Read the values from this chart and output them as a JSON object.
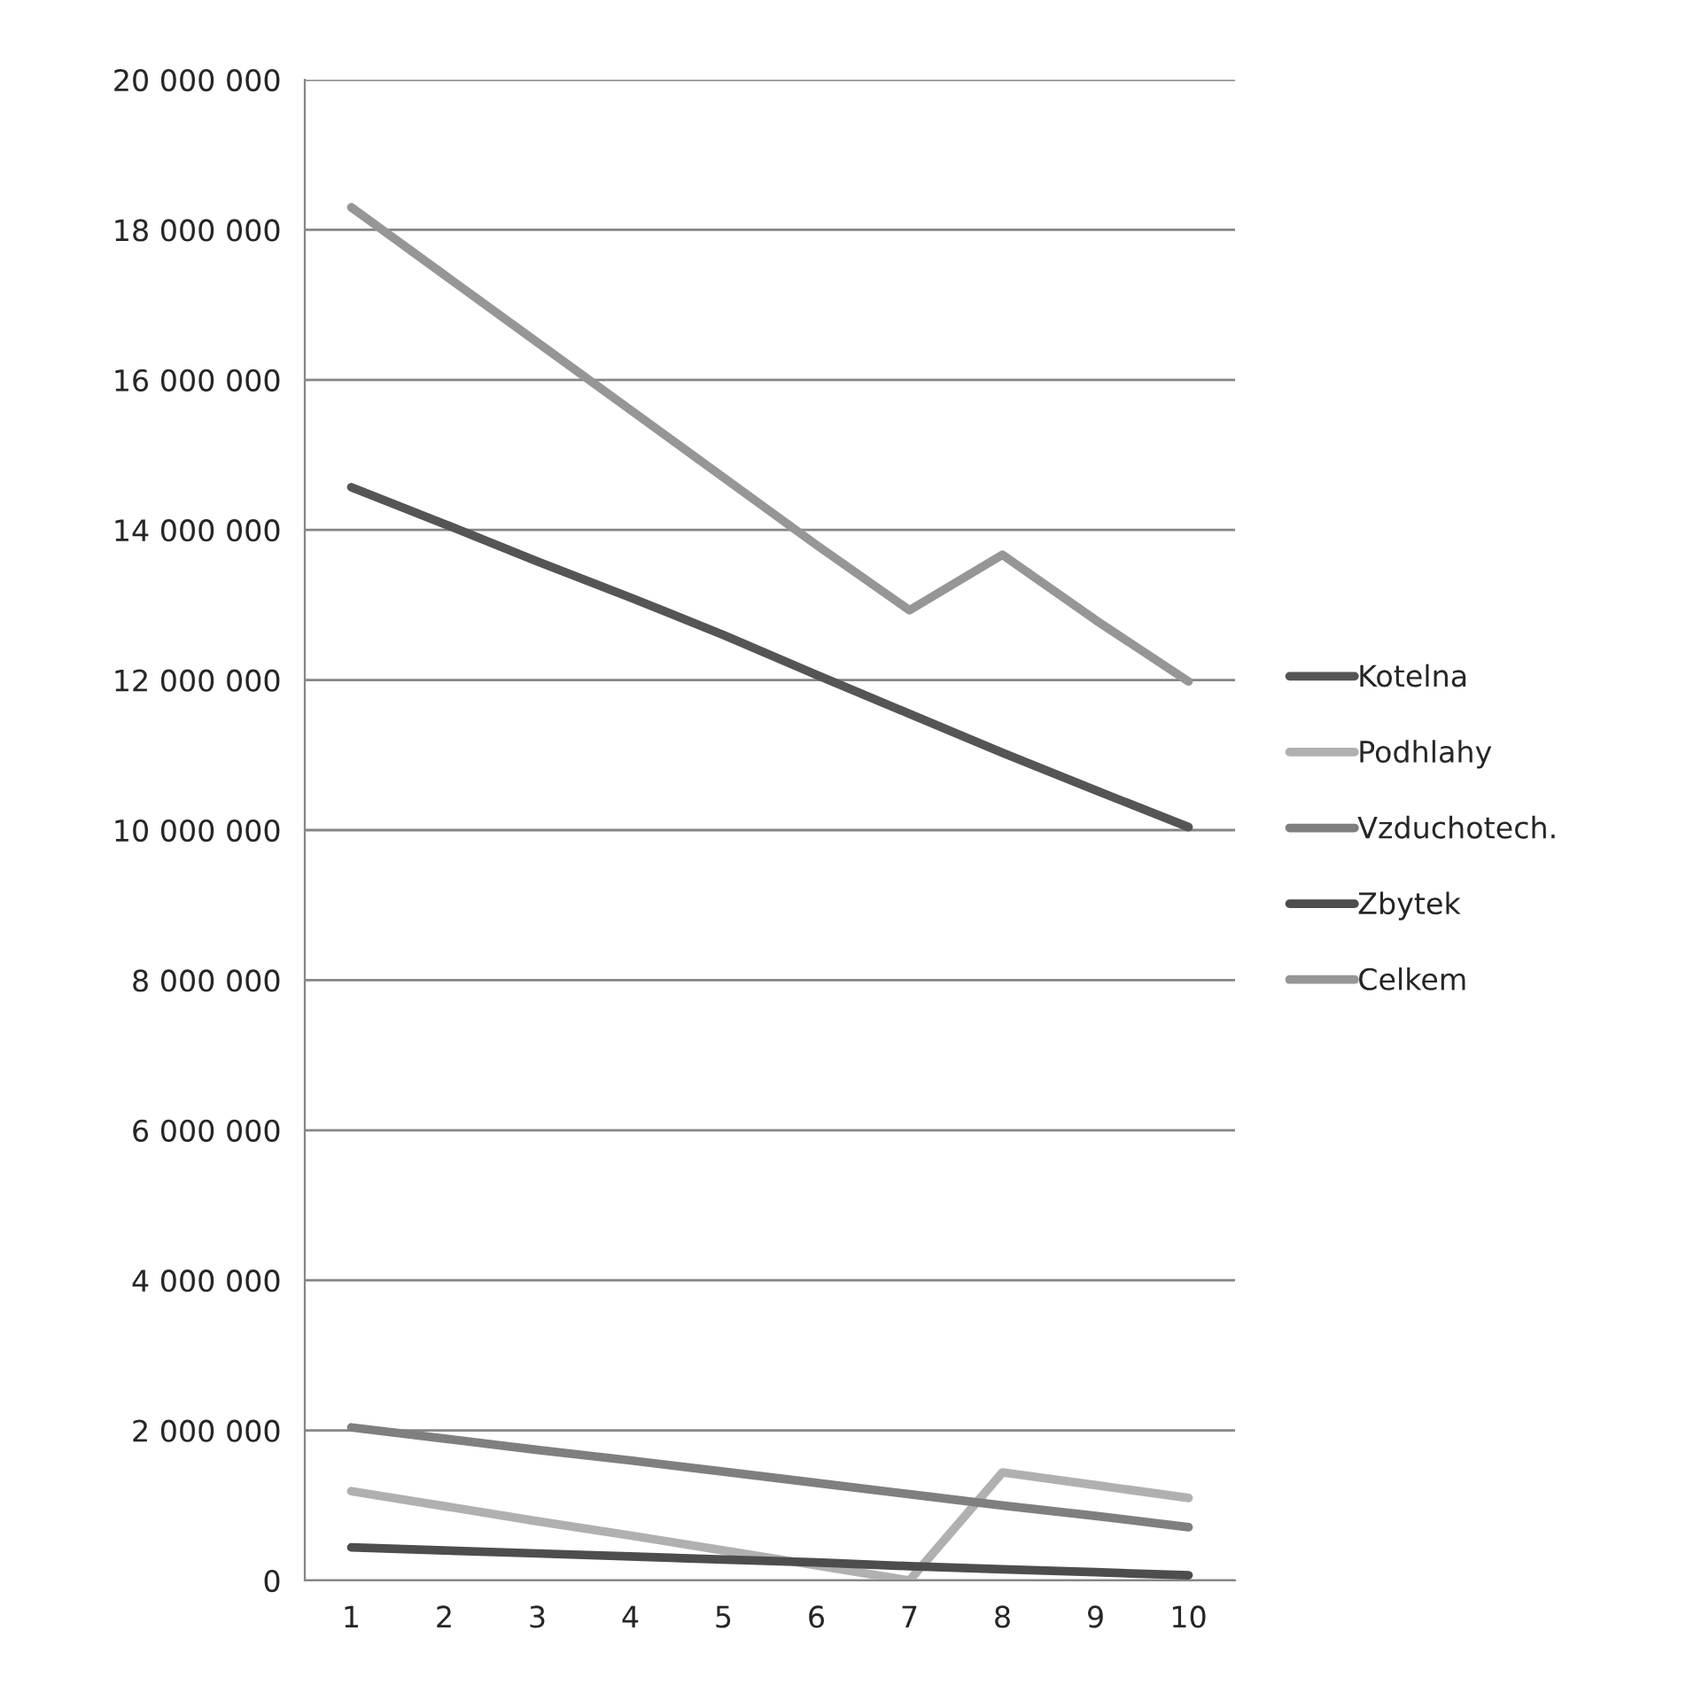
{
  "chart_data": {
    "type": "line",
    "categories": [
      "1",
      "2",
      "3",
      "4",
      "5",
      "6",
      "7",
      "8",
      "9",
      "10"
    ],
    "series": [
      {
        "name": "Kotelna",
        "color": "#555555",
        "values": [
          14570000,
          14080000,
          13580000,
          13100000,
          12600000,
          12070000,
          11550000,
          11030000,
          10530000,
          10040000
        ]
      },
      {
        "name": "Podhlahy",
        "color": "#b0b0b0",
        "values": [
          1190000,
          990000,
          790000,
          600000,
          400000,
          200000,
          0,
          1440000,
          1270000,
          1100000
        ]
      },
      {
        "name": "Vzduchotech.",
        "color": "#7f7f7f",
        "values": [
          2040000,
          1890000,
          1740000,
          1600000,
          1450000,
          1300000,
          1150000,
          1000000,
          860000,
          710000
        ]
      },
      {
        "name": "Zbytek",
        "color": "#4d4d4d",
        "values": [
          440000,
          400000,
          360000,
          320000,
          280000,
          240000,
          190000,
          150000,
          110000,
          70000
        ]
      },
      {
        "name": "Celkem",
        "color": "#969696",
        "values": [
          18300000,
          17400000,
          16500000,
          15600000,
          14700000,
          13800000,
          12930000,
          13670000,
          12800000,
          11980000
        ]
      }
    ],
    "ylim": [
      0,
      20000000
    ],
    "yticks": [
      {
        "value": 0,
        "label": "0"
      },
      {
        "value": 2000000,
        "label": "2 000 000"
      },
      {
        "value": 4000000,
        "label": "4 000 000"
      },
      {
        "value": 6000000,
        "label": "6 000 000"
      },
      {
        "value": 8000000,
        "label": "8 000 000"
      },
      {
        "value": 10000000,
        "label": "10 000 000"
      },
      {
        "value": 12000000,
        "label": "12 000 000"
      },
      {
        "value": 14000000,
        "label": "14 000 000"
      },
      {
        "value": 16000000,
        "label": "16 000 000"
      },
      {
        "value": 18000000,
        "label": "18 000 000"
      },
      {
        "value": 20000000,
        "label": "20 000 000"
      }
    ],
    "grid": "y",
    "legend": "right",
    "marker": "none",
    "line_style": "solid"
  }
}
